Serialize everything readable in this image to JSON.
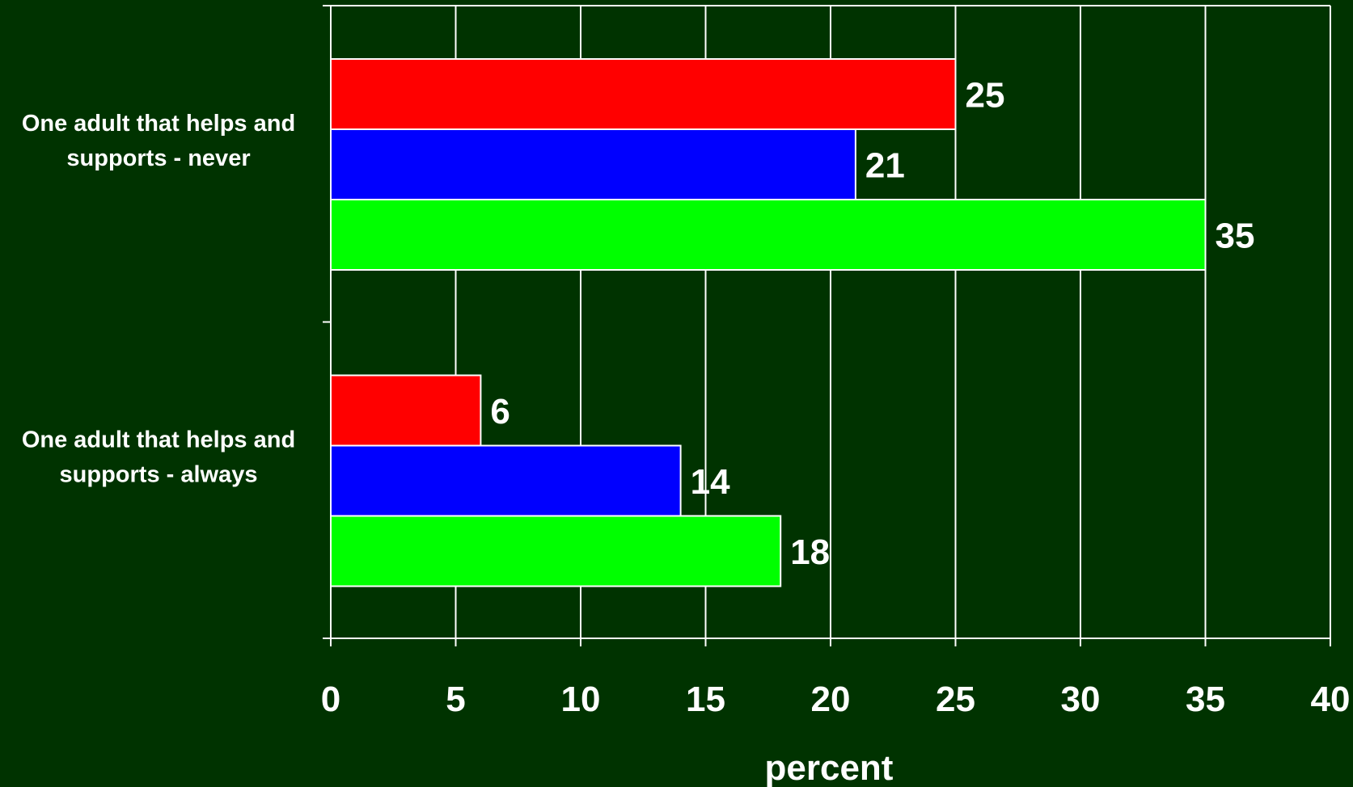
{
  "chart_data": {
    "type": "bar",
    "orientation": "horizontal",
    "categories": [
      [
        "One adult that helps and",
        "supports - never"
      ],
      [
        "One adult that helps and",
        "supports - always"
      ]
    ],
    "series": [
      {
        "color": "#ff0000",
        "values": [
          25,
          6
        ]
      },
      {
        "color": "#0000ff",
        "values": [
          21,
          14
        ]
      },
      {
        "color": "#00ff00",
        "values": [
          35,
          18
        ]
      }
    ],
    "xlabel": "percent",
    "xlim": [
      0,
      40
    ],
    "xticks": [
      0,
      5,
      10,
      15,
      20,
      25,
      30,
      35,
      40
    ],
    "grid": true,
    "legend": "none",
    "colors": {
      "background": "#003300",
      "grid": "#ffffff",
      "text": "#ffffff"
    }
  }
}
